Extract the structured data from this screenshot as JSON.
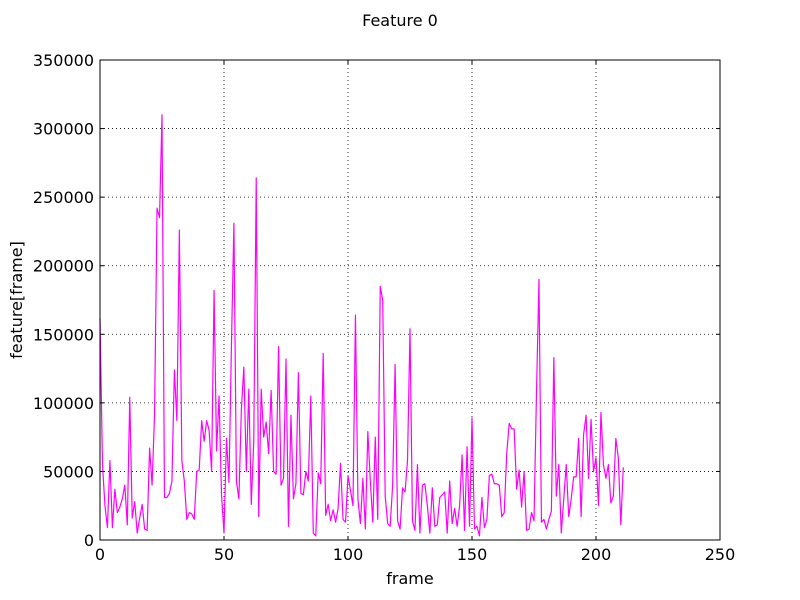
{
  "chart_data": {
    "type": "line",
    "title": "Feature 0",
    "xlabel": "frame",
    "ylabel": "feature[frame]",
    "xlim": [
      0,
      250
    ],
    "ylim": [
      0,
      350000
    ],
    "xticks": [
      0,
      50,
      100,
      150,
      200,
      250
    ],
    "yticks": [
      0,
      50000,
      100000,
      150000,
      200000,
      250000,
      300000,
      350000
    ],
    "xtick_labels": [
      "0",
      "50",
      "100",
      "150",
      "200",
      "250"
    ],
    "ytick_labels": [
      "0",
      "50000",
      "100000",
      "150000",
      "200000",
      "250000",
      "300000",
      "350000"
    ],
    "grid": true,
    "grid_style": "dotted",
    "line_color": "#ff00ff",
    "series": [
      {
        "values": [
          162000,
          55000,
          25000,
          9000,
          58000,
          9000,
          37000,
          20000,
          24000,
          30000,
          40000,
          11000,
          104000,
          16000,
          28000,
          5000,
          16000,
          26000,
          8000,
          7000,
          67000,
          40000,
          92000,
          242000,
          235000,
          310000,
          31000,
          31000,
          34000,
          43000,
          124000,
          87000,
          226000,
          58000,
          43000,
          15000,
          20000,
          19000,
          15000,
          50000,
          51000,
          87000,
          72000,
          87000,
          80000,
          50000,
          182000,
          65000,
          105000,
          33000,
          5000,
          74000,
          42000,
          142000,
          231000,
          43000,
          30000,
          95000,
          126000,
          50000,
          110000,
          26000,
          72000,
          264000,
          17000,
          110000,
          75000,
          86000,
          63000,
          109000,
          50000,
          48000,
          141000,
          40000,
          45000,
          132000,
          10000,
          91000,
          30000,
          41000,
          122000,
          34000,
          33000,
          50000,
          43000,
          105000,
          5000,
          3000,
          49000,
          41000,
          136000,
          18000,
          26000,
          14000,
          22000,
          13000,
          23000,
          56000,
          15000,
          13000,
          47000,
          36000,
          25000,
          164000,
          30000,
          12000,
          45000,
          8000,
          79000,
          43000,
          13000,
          75000,
          15000,
          185000,
          175000,
          32000,
          12000,
          10000,
          40000,
          128000,
          14000,
          8000,
          38000,
          35000,
          58000,
          154000,
          14000,
          7000,
          55000,
          5000,
          40000,
          41000,
          25000,
          5000,
          38000,
          10000,
          11000,
          31000,
          33000,
          35000,
          5000,
          43000,
          12000,
          23000,
          10000,
          25000,
          62000,
          7000,
          68000,
          10000,
          89000,
          8000,
          10000,
          3000,
          31000,
          9000,
          15000,
          47000,
          48000,
          41000,
          41000,
          40000,
          17000,
          20000,
          63000,
          85000,
          81000,
          81000,
          37000,
          51000,
          24000,
          50000,
          7000,
          8000,
          20000,
          14000,
          107000,
          190000,
          13000,
          15000,
          8000,
          15000,
          21000,
          133000,
          32000,
          55000,
          5000,
          30000,
          55000,
          17000,
          30000,
          46000,
          46000,
          74000,
          17000,
          77000,
          91000,
          45000,
          88000,
          50000,
          60000,
          25000,
          93000,
          55000,
          45000,
          55000,
          27000,
          32000,
          74000,
          60000,
          11000,
          53000
        ]
      }
    ]
  }
}
